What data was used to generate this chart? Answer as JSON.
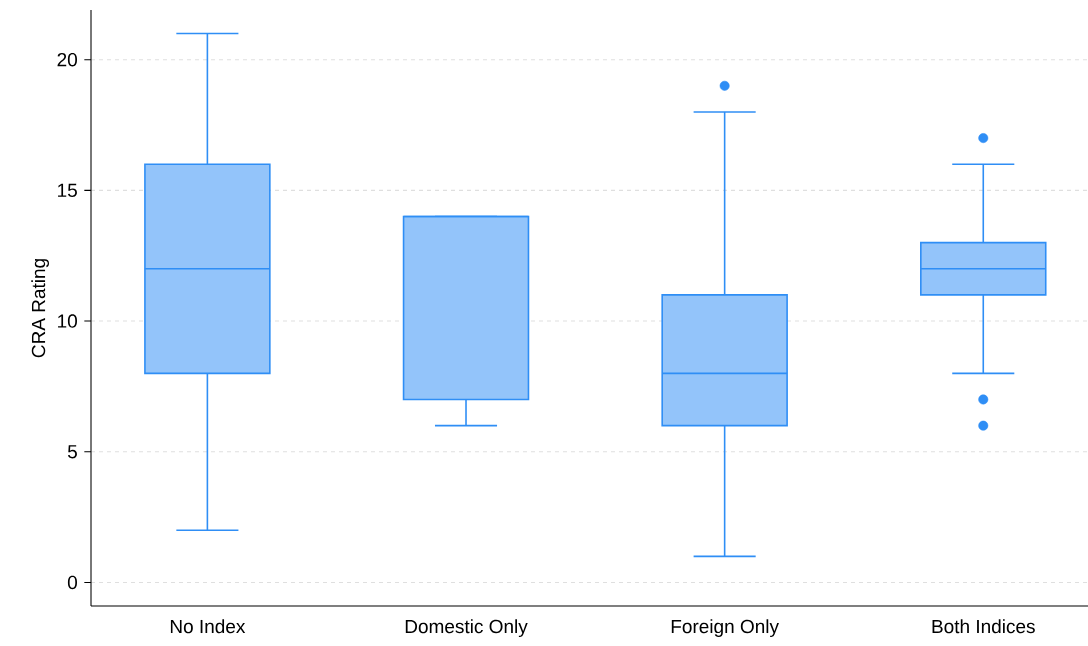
{
  "chart_data": {
    "type": "box",
    "ylabel": "CRA Rating",
    "categories": [
      "No Index",
      "Domestic Only",
      "Foreign Only",
      "Both Indices"
    ],
    "boxes": [
      {
        "low": 2,
        "q1": 8,
        "median": 12,
        "q3": 16,
        "high": 21
      },
      {
        "low": 6,
        "q1": 7,
        "median": 14,
        "q3": 14,
        "high": 14
      },
      {
        "low": 1,
        "q1": 6,
        "median": 8,
        "q3": 11,
        "high": 18,
        "outliers": [
          19
        ]
      },
      {
        "low": 8,
        "q1": 11,
        "median": 12,
        "q3": 13,
        "high": 16,
        "outliers": [
          17,
          7,
          6
        ]
      }
    ],
    "color": "#2f8ef5",
    "ylim": [
      -0.9,
      21.9
    ],
    "yticks": [
      0,
      5,
      10,
      15,
      20
    ],
    "grid": "y"
  }
}
